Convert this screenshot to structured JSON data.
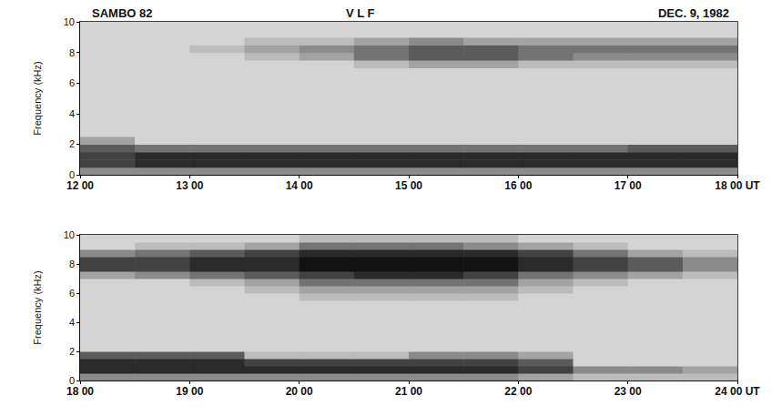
{
  "chart_data": [
    {
      "type": "heatmap",
      "title": "SAMBO 82",
      "subtitle": "V L F",
      "annotations": [
        "DEC. 9, 1982"
      ],
      "y_label": "Frequency (kHz)",
      "xlim": [
        12,
        18
      ],
      "xticks": [
        {
          "value": 12,
          "label": "12 00"
        },
        {
          "value": 13,
          "label": "13 00"
        },
        {
          "value": 14,
          "label": "14 00"
        },
        {
          "value": 15,
          "label": "15 00"
        },
        {
          "value": 16,
          "label": "16 00"
        },
        {
          "value": 17,
          "label": "17 00"
        },
        {
          "value": 18,
          "label": "18 00 UT"
        }
      ],
      "ylim": [
        0,
        10
      ],
      "yticks": [
        0,
        2,
        4,
        6,
        8,
        10
      ],
      "grid": false,
      "color_range": [
        0,
        9
      ],
      "x_bins": [
        12,
        12.5,
        13,
        13.5,
        14,
        14.5,
        15,
        15.5,
        16,
        16.5,
        17,
        17.5,
        18
      ],
      "y_bins": [
        0,
        0.5,
        1,
        1.5,
        2,
        2.5,
        3,
        3.5,
        4,
        4.5,
        5,
        5.5,
        6,
        6.5,
        7,
        7.5,
        8,
        8.5,
        9,
        9.5,
        10
      ],
      "cells": [
        [
          4,
          4,
          4,
          4,
          4,
          4,
          4,
          4,
          4,
          4,
          4,
          4
        ],
        [
          7,
          8,
          8,
          8,
          8,
          8,
          8,
          8,
          8,
          8,
          8,
          8
        ],
        [
          7,
          8,
          8,
          8,
          8,
          8,
          8,
          8,
          8,
          8,
          8,
          8
        ],
        [
          6,
          5,
          5,
          5,
          5,
          5,
          5,
          5,
          5,
          5,
          6,
          6
        ],
        [
          3,
          1,
          1,
          1,
          1,
          1,
          1,
          1,
          1,
          1,
          1,
          1
        ],
        [
          1,
          1,
          1,
          1,
          1,
          1,
          1,
          1,
          1,
          1,
          1,
          1
        ],
        [
          1,
          1,
          1,
          1,
          1,
          1,
          1,
          1,
          1,
          1,
          1,
          1
        ],
        [
          1,
          1,
          1,
          1,
          1,
          1,
          1,
          1,
          1,
          1,
          1,
          1
        ],
        [
          1,
          1,
          1,
          1,
          1,
          1,
          1,
          1,
          1,
          1,
          1,
          1
        ],
        [
          1,
          1,
          1,
          1,
          1,
          1,
          1,
          1,
          1,
          1,
          1,
          1
        ],
        [
          1,
          1,
          1,
          1,
          1,
          1,
          1,
          1,
          1,
          1,
          1,
          1
        ],
        [
          1,
          1,
          1,
          1,
          1,
          1,
          1,
          1,
          1,
          1,
          1,
          1
        ],
        [
          1,
          1,
          1,
          1,
          1,
          1,
          1,
          1,
          1,
          1,
          1,
          1
        ],
        [
          1,
          1,
          1,
          1,
          1,
          1,
          1,
          1,
          1,
          1,
          1,
          1
        ],
        [
          1,
          1,
          1,
          1,
          1,
          2,
          3,
          3,
          2,
          2,
          2,
          2
        ],
        [
          1,
          1,
          1,
          2,
          3,
          5,
          6,
          6,
          5,
          4,
          4,
          4
        ],
        [
          1,
          1,
          2,
          3,
          4,
          5,
          6,
          6,
          5,
          5,
          5,
          5
        ],
        [
          1,
          1,
          1,
          2,
          2,
          3,
          4,
          3,
          3,
          3,
          3,
          3
        ],
        [
          1,
          1,
          1,
          1,
          1,
          1,
          1,
          1,
          1,
          1,
          1,
          1
        ],
        [
          1,
          1,
          1,
          1,
          1,
          1,
          1,
          1,
          1,
          1,
          1,
          1
        ]
      ]
    },
    {
      "type": "heatmap",
      "y_label": "Frequency (kHz)",
      "xlim": [
        18,
        24
      ],
      "xticks": [
        {
          "value": 18,
          "label": "18 00"
        },
        {
          "value": 19,
          "label": "19 00"
        },
        {
          "value": 20,
          "label": "20 00"
        },
        {
          "value": 21,
          "label": "21 00"
        },
        {
          "value": 22,
          "label": "22 00"
        },
        {
          "value": 23,
          "label": "23 00"
        },
        {
          "value": 24,
          "label": "24 00 UT"
        }
      ],
      "ylim": [
        0,
        10
      ],
      "yticks": [
        0,
        2,
        4,
        6,
        8,
        10
      ],
      "grid": false,
      "color_range": [
        0,
        9
      ],
      "x_bins": [
        18,
        18.5,
        19,
        19.5,
        20,
        20.5,
        21,
        21.5,
        22,
        22.5,
        23,
        23.5,
        24
      ],
      "y_bins": [
        0,
        0.5,
        1,
        1.5,
        2,
        2.5,
        3,
        3.5,
        4,
        4.5,
        5,
        5.5,
        6,
        6.5,
        7,
        7.5,
        8,
        8.5,
        9,
        9.5,
        10
      ],
      "cells": [
        [
          4,
          4,
          4,
          4,
          4,
          4,
          4,
          4,
          3,
          2,
          2,
          2
        ],
        [
          8,
          8,
          8,
          8,
          8,
          8,
          8,
          8,
          7,
          4,
          4,
          3
        ],
        [
          8,
          8,
          8,
          7,
          7,
          7,
          7,
          7,
          6,
          1,
          1,
          1
        ],
        [
          6,
          6,
          6,
          2,
          2,
          2,
          4,
          4,
          3,
          1,
          1,
          1
        ],
        [
          1,
          1,
          1,
          1,
          1,
          1,
          1,
          1,
          1,
          1,
          1,
          1
        ],
        [
          1,
          1,
          1,
          1,
          1,
          1,
          1,
          1,
          1,
          1,
          1,
          1
        ],
        [
          1,
          1,
          1,
          1,
          1,
          1,
          1,
          1,
          1,
          1,
          1,
          1
        ],
        [
          1,
          1,
          1,
          1,
          1,
          1,
          1,
          1,
          1,
          1,
          1,
          1
        ],
        [
          1,
          1,
          1,
          1,
          1,
          1,
          1,
          1,
          1,
          1,
          1,
          1
        ],
        [
          1,
          1,
          1,
          1,
          1,
          1,
          1,
          1,
          1,
          1,
          1,
          1
        ],
        [
          1,
          1,
          1,
          1,
          1,
          1,
          1,
          1,
          1,
          1,
          1,
          1
        ],
        [
          1,
          1,
          1,
          1,
          2,
          2,
          2,
          2,
          1,
          1,
          1,
          1
        ],
        [
          1,
          1,
          1,
          2,
          3,
          3,
          3,
          3,
          2,
          1,
          1,
          1
        ],
        [
          1,
          1,
          2,
          3,
          5,
          5,
          5,
          5,
          3,
          2,
          1,
          1
        ],
        [
          3,
          4,
          5,
          6,
          7,
          8,
          8,
          7,
          5,
          4,
          3,
          2
        ],
        [
          7,
          7,
          8,
          8,
          9,
          9,
          9,
          9,
          8,
          7,
          6,
          4
        ],
        [
          7,
          7,
          8,
          8,
          9,
          9,
          9,
          9,
          8,
          7,
          6,
          4
        ],
        [
          4,
          5,
          6,
          7,
          8,
          8,
          8,
          8,
          7,
          5,
          3,
          2
        ],
        [
          1,
          2,
          2,
          3,
          5,
          5,
          5,
          4,
          3,
          2,
          1,
          1
        ],
        [
          1,
          1,
          1,
          1,
          2,
          2,
          2,
          2,
          1,
          1,
          1,
          1
        ]
      ]
    }
  ]
}
